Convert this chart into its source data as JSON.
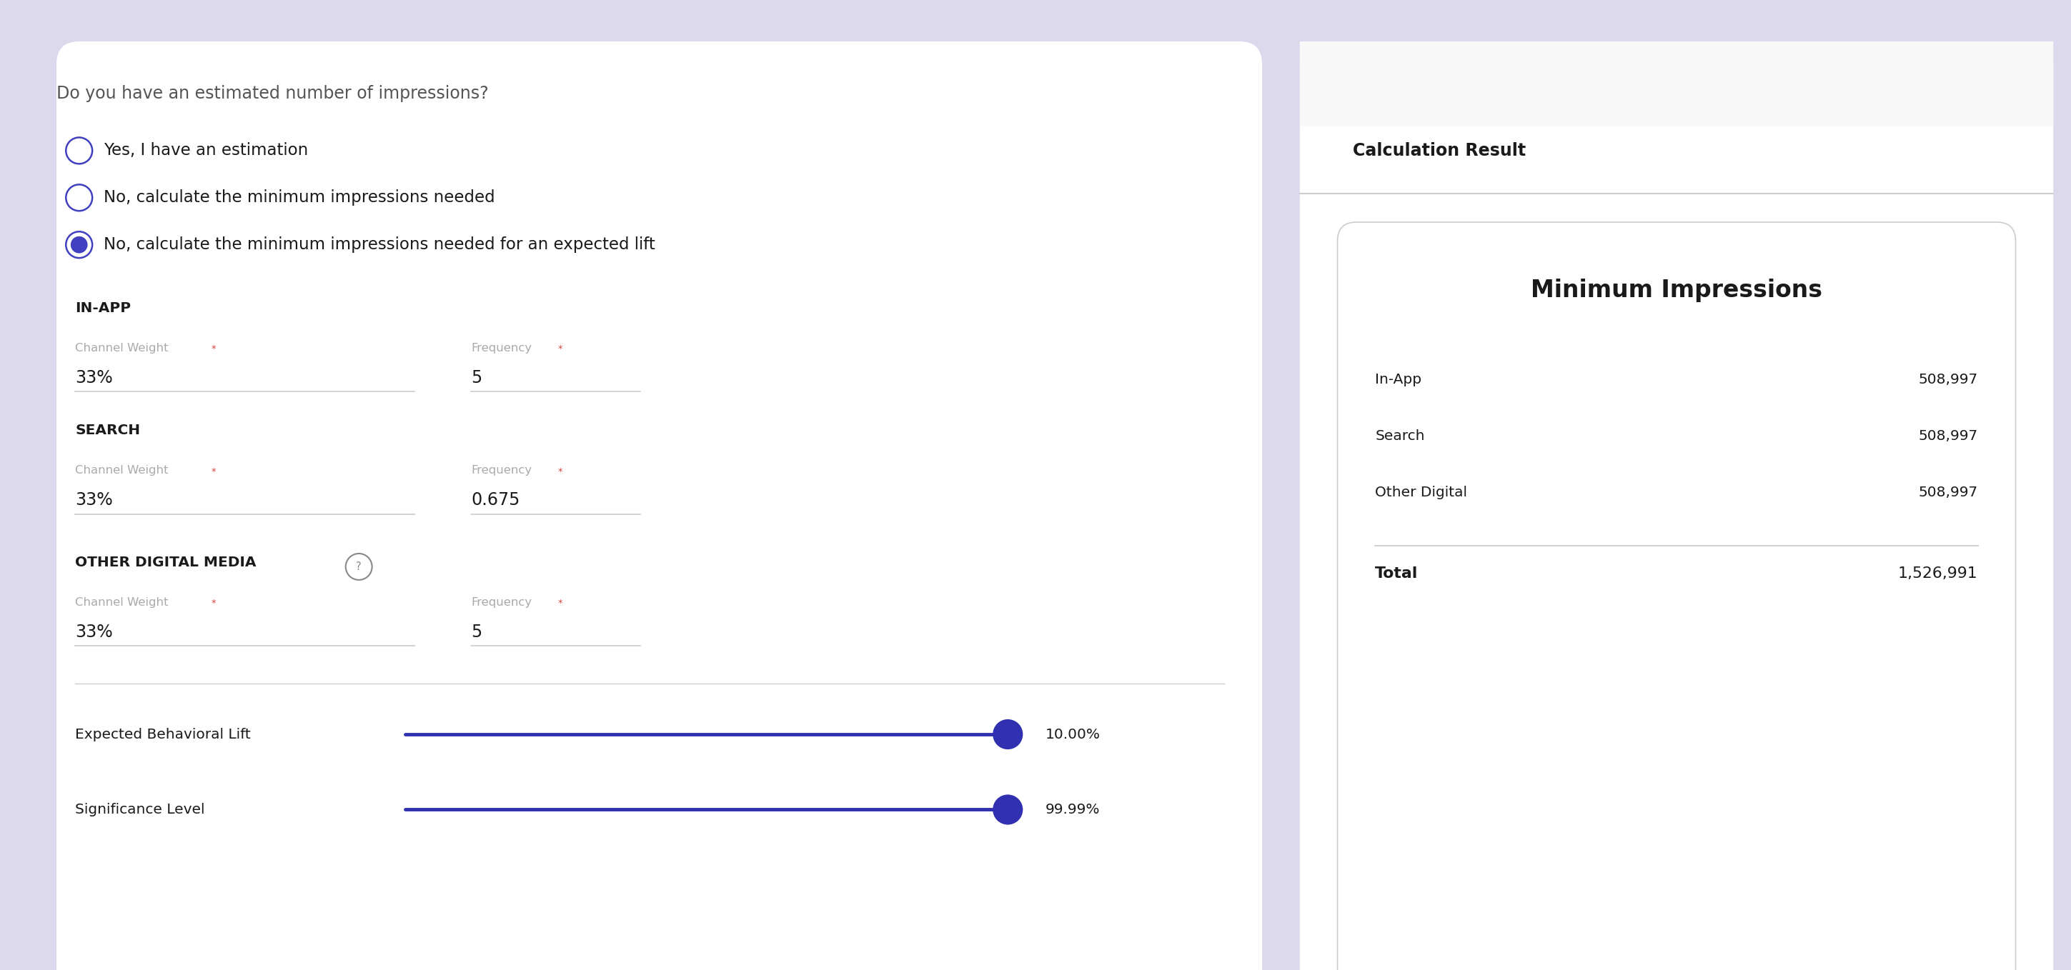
{
  "bg_color": "#ddd9ec",
  "panel_bg": "#ffffff",
  "title_question": "Do you have an estimated number of impressions?",
  "radio_options": [
    "Yes, I have an estimation",
    "No, calculate the minimum impressions needed",
    "No, calculate the minimum impressions needed for an expected lift"
  ],
  "radio_selected": 2,
  "sections": [
    {
      "title": "IN-APP",
      "channel_weight_value": "33%",
      "frequency_value": "5"
    },
    {
      "title": "SEARCH",
      "channel_weight_value": "33%",
      "frequency_value": "0.675"
    },
    {
      "title": "OTHER DIGITAL MEDIA",
      "has_info": true,
      "channel_weight_value": "33%",
      "frequency_value": "5"
    }
  ],
  "sliders": [
    {
      "label": "Expected Behavioral Lift",
      "value": "10.00%"
    },
    {
      "label": "Significance Level",
      "value": "99.99%"
    }
  ],
  "result_panel_title": "Calculation Result",
  "result_title": "Minimum Impressions",
  "result_rows": [
    {
      "label": "In-App",
      "value": "508,997"
    },
    {
      "label": "Search",
      "value": "508,997"
    },
    {
      "label": "Other Digital",
      "value": "508,997"
    }
  ],
  "result_total_label": "Total",
  "result_total_value": "1,526,991",
  "accent_color": "#4040c0",
  "label_color": "#aaaaaa",
  "text_color": "#1a1a1a",
  "gray_text": "#555555",
  "asterisk_color": "#e04040",
  "line_color": "#cccccc",
  "slider_color": "#3030b0",
  "header_bg": "#f8f8f8"
}
